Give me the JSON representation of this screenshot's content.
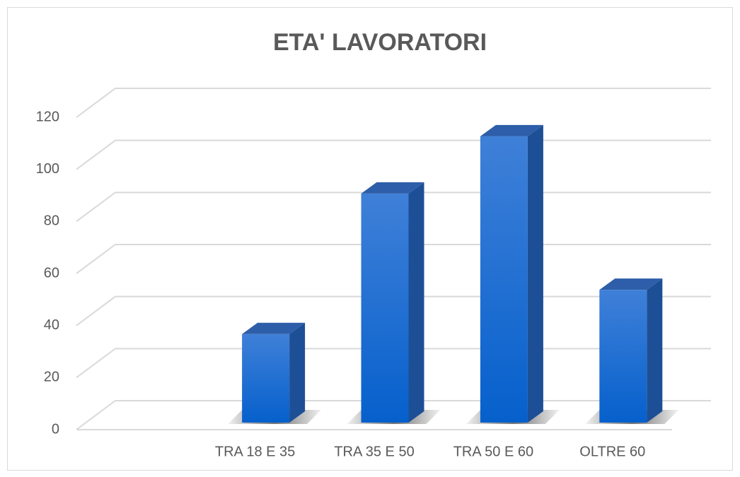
{
  "chart_data": {
    "type": "bar3d",
    "title": "ETA' LAVORATORI",
    "categories": [
      null,
      "TRA 18 E 35",
      "TRA 35 E 50",
      "TRA 50 E 60",
      "OLTRE 60"
    ],
    "values": [
      null,
      34,
      88,
      110,
      51
    ],
    "color": "#0a62cc",
    "ylim": [
      0,
      120
    ],
    "yticks": [
      0,
      20,
      40,
      60,
      80,
      100,
      120
    ],
    "grid": true
  }
}
